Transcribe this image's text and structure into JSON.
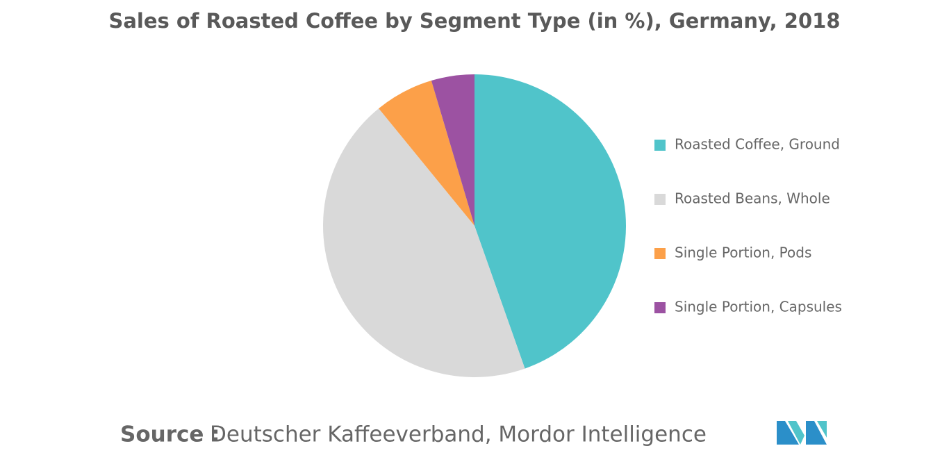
{
  "chart_data": {
    "type": "pie",
    "title": "Sales of Roasted Coffee by Segment Type (in %), Germany, 2018",
    "categories": [
      "Roasted Coffee, Ground",
      "Roasted Beans, Whole",
      "Single Portion, Pods",
      "Single Portion, Capsules"
    ],
    "values": [
      44.6,
      44.5,
      6.3,
      4.6
    ],
    "colors": [
      "#50c4ca",
      "#d9d9d9",
      "#fca049",
      "#9c52a2"
    ],
    "legend": "right",
    "source_label": "Source :",
    "source": "Deutscher Kaffeeverband, Mordor Intelligence"
  }
}
